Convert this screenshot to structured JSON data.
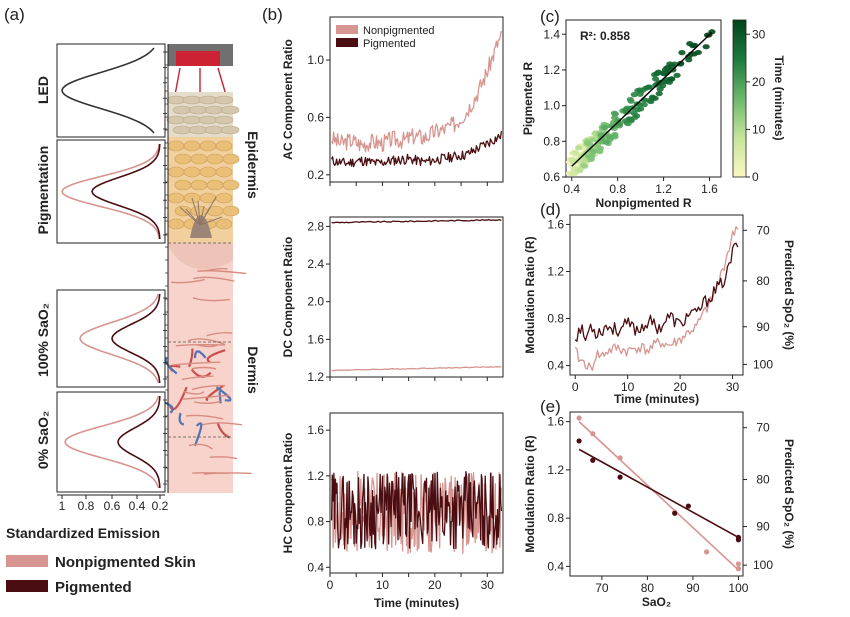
{
  "colors": {
    "nonpigmented": "#d69590",
    "pigmented": "#4a0d12",
    "led": "#333333",
    "skin_top": "#e3d9c6",
    "dermis": "#f6d4cc",
    "colormap": [
      "#fbf7c2",
      "#c6e59a",
      "#6ab86b",
      "#1d7a3c",
      "#00441b"
    ]
  },
  "panel_a": {
    "label": "(a)",
    "rows": [
      {
        "title": "LED",
        "curves": [
          "led"
        ]
      },
      {
        "title": "Pigmentation",
        "curves": [
          "nonpigmented",
          "pigmented"
        ]
      },
      {
        "title": "100% SaO₂",
        "curves": [
          "nonpigmented",
          "pigmented"
        ]
      },
      {
        "title": "0% SaO₂",
        "curves": [
          "nonpigmented",
          "pigmented"
        ]
      }
    ],
    "layer_labels": {
      "epidermis": "Epidermis",
      "dermis": "Dermis"
    },
    "x_ticks": [
      "1",
      "0.8",
      "0.6",
      "0.4",
      "0.2"
    ],
    "x_title": "Standardized Emission",
    "legend": {
      "nonpigmented": "Nonpigmented Skin",
      "pigmented": "Pigmented"
    }
  },
  "chart_data": [
    {
      "id": "b_ac",
      "type": "line",
      "panel": "(b)",
      "ylabel": "AC Component Ratio",
      "xlim": [
        0,
        33
      ],
      "ylim": [
        0.15,
        1.3
      ],
      "yticks": [
        "0.2",
        "0.6",
        "1.0"
      ],
      "ytick_values": [
        0.2,
        0.6,
        1.0
      ],
      "legend": [
        "Nonpigmented",
        "Pigmented"
      ],
      "series": [
        {
          "name": "Nonpigmented",
          "color": "nonpigmented",
          "x": [
            0,
            2,
            4,
            6,
            8,
            10,
            12,
            14,
            16,
            18,
            20,
            22,
            24,
            25,
            26,
            27,
            28,
            29,
            30,
            31,
            32,
            33
          ],
          "values": [
            0.46,
            0.42,
            0.44,
            0.41,
            0.43,
            0.42,
            0.45,
            0.44,
            0.47,
            0.46,
            0.5,
            0.52,
            0.56,
            0.6,
            0.64,
            0.7,
            0.76,
            0.84,
            0.92,
            1.02,
            1.12,
            1.18
          ]
        },
        {
          "name": "Pigmented",
          "color": "pigmented",
          "x": [
            0,
            3,
            6,
            9,
            12,
            15,
            18,
            21,
            24,
            26,
            28,
            30,
            31,
            32,
            33
          ],
          "values": [
            0.3,
            0.28,
            0.3,
            0.28,
            0.3,
            0.31,
            0.29,
            0.31,
            0.33,
            0.34,
            0.38,
            0.42,
            0.44,
            0.46,
            0.48
          ]
        }
      ]
    },
    {
      "id": "b_dc",
      "type": "line",
      "ylabel": "DC Component Ratio",
      "xlim": [
        0,
        33
      ],
      "ylim": [
        1.2,
        2.9
      ],
      "yticks": [
        "1.2",
        "1.6",
        "2.0",
        "2.4",
        "2.8"
      ],
      "ytick_values": [
        1.2,
        1.6,
        2.0,
        2.4,
        2.8
      ],
      "series": [
        {
          "name": "Nonpigmented",
          "color": "nonpigmented",
          "x": [
            0,
            33
          ],
          "values": [
            1.27,
            1.31
          ]
        },
        {
          "name": "Pigmented",
          "color": "pigmented",
          "x": [
            0,
            33
          ],
          "values": [
            2.84,
            2.87
          ]
        }
      ]
    },
    {
      "id": "b_hc",
      "type": "line",
      "ylabel": "HC Component Ratio",
      "xlabel": "Time (minutes)",
      "xlim": [
        0,
        33
      ],
      "ylim": [
        0.35,
        1.75
      ],
      "yticks": [
        "0.4",
        "0.8",
        "1.2",
        "1.6"
      ],
      "ytick_values": [
        0.4,
        0.8,
        1.2,
        1.6
      ],
      "xticks": [
        "0",
        "10",
        "20",
        "30"
      ],
      "xtick_values": [
        0,
        10,
        20,
        30
      ],
      "series": [
        {
          "name": "Nonpigmented",
          "color": "nonpigmented",
          "x": [
            0,
            33
          ],
          "values": [
            0.88,
            0.88
          ]
        },
        {
          "name": "Pigmented",
          "color": "pigmented",
          "x": [
            0,
            33
          ],
          "values": [
            0.9,
            0.9
          ]
        }
      ]
    },
    {
      "id": "c",
      "type": "scatter",
      "panel": "(c)",
      "xlabel": "Nonpigmented R",
      "ylabel": "Pigmented R",
      "annotation": "R²: 0.858",
      "xlim": [
        0.35,
        1.7
      ],
      "ylim": [
        0.6,
        1.48
      ],
      "xticks": [
        "0.4",
        "0.8",
        "1.2",
        "1.6"
      ],
      "xtick_values": [
        0.4,
        0.8,
        1.2,
        1.6
      ],
      "yticks": [
        "0.6",
        "0.8",
        "1.0",
        "1.2",
        "1.4"
      ],
      "ytick_values": [
        0.6,
        0.8,
        1.0,
        1.2,
        1.4
      ],
      "colorbar": {
        "title": "Time (minutes)",
        "range": [
          0,
          33
        ],
        "ticks": [
          "0",
          "10",
          "20",
          "30"
        ],
        "tick_values": [
          0,
          10,
          20,
          30
        ]
      },
      "fit": {
        "x": [
          0.4,
          1.62
        ],
        "y": [
          0.66,
          1.41
        ]
      }
    },
    {
      "id": "d",
      "type": "line",
      "panel": "(d)",
      "ylabel": "Modulation Ratio (R)",
      "ylabel2": "Predicted SpO₂ (%)",
      "xlabel": "Time (minutes)",
      "xlim": [
        -1,
        32
      ],
      "ylim": [
        0.32,
        1.68
      ],
      "yticks": [
        "0.4",
        "0.8",
        "1.2",
        "1.6"
      ],
      "ytick_values": [
        0.4,
        0.8,
        1.2,
        1.6
      ],
      "y2ticks": [
        "70",
        "80",
        "90",
        "100"
      ],
      "y2tick_values": [
        1.55,
        1.12,
        0.73,
        0.41
      ],
      "xticks": [
        "0",
        "10",
        "20",
        "30"
      ],
      "xtick_values": [
        0,
        10,
        20,
        30
      ],
      "series": [
        {
          "name": "Nonpigmented",
          "color": "nonpigmented",
          "x": [
            0,
            1,
            2,
            3,
            4,
            5,
            6,
            8,
            10,
            12,
            14,
            16,
            18,
            20,
            21,
            22,
            23,
            24,
            25,
            26,
            27,
            28,
            29,
            30,
            31
          ],
          "values": [
            0.52,
            0.44,
            0.42,
            0.36,
            0.5,
            0.48,
            0.52,
            0.55,
            0.52,
            0.56,
            0.53,
            0.6,
            0.57,
            0.62,
            0.66,
            0.7,
            0.72,
            0.8,
            0.88,
            0.95,
            1.05,
            1.2,
            1.35,
            1.5,
            1.6
          ]
        },
        {
          "name": "Pigmented",
          "color": "pigmented",
          "x": [
            0,
            1,
            2,
            3,
            4,
            5,
            6,
            8,
            10,
            12,
            14,
            16,
            18,
            20,
            21,
            22,
            23,
            24,
            25,
            26,
            27,
            28,
            29,
            30,
            31
          ],
          "values": [
            0.64,
            0.72,
            0.62,
            0.75,
            0.68,
            0.7,
            0.74,
            0.7,
            0.75,
            0.7,
            0.78,
            0.72,
            0.82,
            0.74,
            0.8,
            0.86,
            0.82,
            0.9,
            0.95,
            1.0,
            1.05,
            1.1,
            1.18,
            1.36,
            1.44
          ]
        }
      ]
    },
    {
      "id": "e",
      "type": "scatter",
      "panel": "(e)",
      "ylabel": "Modulation Ratio (R)",
      "ylabel2": "Predicted SpO₂ (%)",
      "xlabel": "SaO₂",
      "xlim": [
        63,
        101
      ],
      "ylim": [
        0.32,
        1.68
      ],
      "yticks": [
        "0.4",
        "0.8",
        "1.2",
        "1.6"
      ],
      "ytick_values": [
        0.4,
        0.8,
        1.2,
        1.6
      ],
      "y2ticks": [
        "70",
        "80",
        "90",
        "100"
      ],
      "y2tick_values": [
        1.55,
        1.12,
        0.73,
        0.41
      ],
      "xticks": [
        "70",
        "80",
        "90",
        "100"
      ],
      "xtick_values": [
        70,
        80,
        90,
        100
      ],
      "series": [
        {
          "name": "Nonpigmented",
          "color": "nonpigmented",
          "x": [
            65,
            68,
            74,
            86,
            93,
            100,
            100
          ],
          "values": [
            1.63,
            1.5,
            1.3,
            0.85,
            0.52,
            0.42,
            0.38
          ],
          "fit": [
            [
              65,
              1.6
            ],
            [
              100,
              0.37
            ]
          ]
        },
        {
          "name": "Pigmented",
          "color": "pigmented",
          "x": [
            65,
            68,
            74,
            86,
            89,
            100,
            100
          ],
          "values": [
            1.44,
            1.28,
            1.14,
            0.84,
            0.9,
            0.64,
            0.62
          ],
          "fit": [
            [
              65,
              1.37
            ],
            [
              100,
              0.64
            ]
          ]
        }
      ]
    }
  ]
}
